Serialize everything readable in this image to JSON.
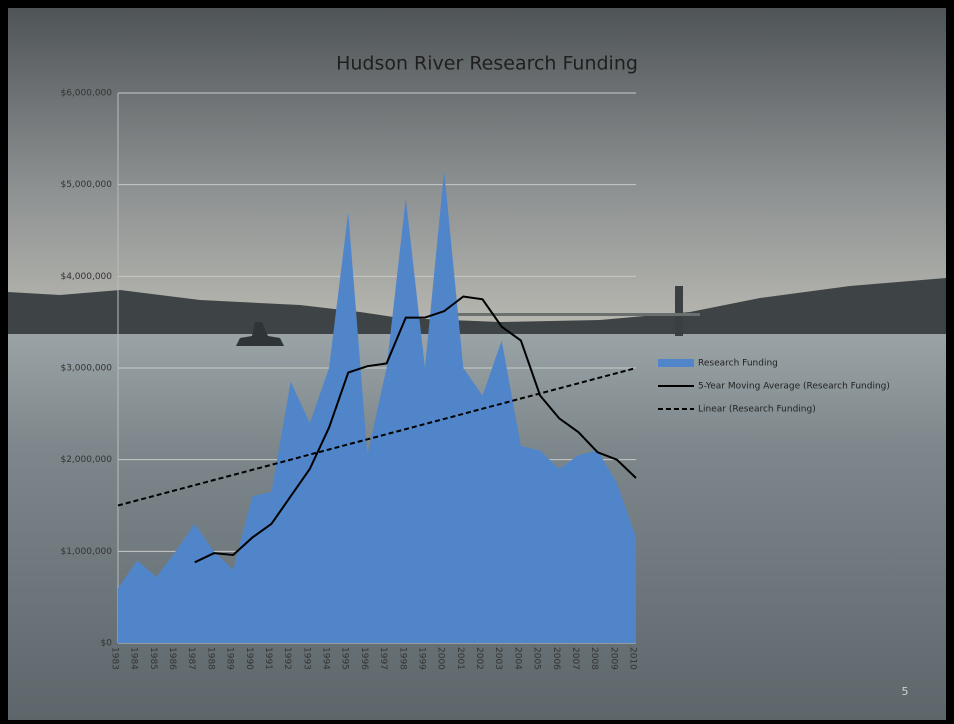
{
  "chart_data": {
    "type": "area",
    "title": "Hudson River Research Funding",
    "slide_number": "5",
    "categories": [
      "1983",
      "1984",
      "1985",
      "1986",
      "1987",
      "1988",
      "1989",
      "1990",
      "1991",
      "1992",
      "1993",
      "1994",
      "1995",
      "1996",
      "1997",
      "1998",
      "1999",
      "2000",
      "2001",
      "2002",
      "2003",
      "2004",
      "2005",
      "2006",
      "2007",
      "2008",
      "2009",
      "2010"
    ],
    "series": [
      {
        "name": "Research Funding",
        "color": "#5185c9",
        "style": "area",
        "values": [
          600000,
          900000,
          720000,
          1000000,
          1300000,
          1000000,
          800000,
          1600000,
          1650000,
          2850000,
          2400000,
          3000000,
          4700000,
          2050000,
          3000000,
          4850000,
          3000000,
          5150000,
          3000000,
          2700000,
          3300000,
          2150000,
          2100000,
          1900000,
          2050000,
          2100000,
          1750000,
          1150000
        ]
      },
      {
        "name": "5-Year Moving Average (Research Funding)",
        "color": "#000000",
        "style": "solid",
        "values": [
          null,
          null,
          null,
          null,
          880000,
          980000,
          960000,
          1150000,
          1300000,
          1600000,
          1900000,
          2350000,
          2950000,
          3020000,
          3050000,
          3550000,
          3550000,
          3620000,
          3780000,
          3750000,
          3450000,
          3300000,
          2700000,
          2450000,
          2300000,
          2080000,
          2000000,
          1800000
        ]
      },
      {
        "name": "Linear (Research Funding)",
        "color": "#000000",
        "style": "dashed",
        "values": [
          1500000,
          1556000,
          1611000,
          1667000,
          1722000,
          1778000,
          1833000,
          1889000,
          1944000,
          2000000,
          2056000,
          2111000,
          2167000,
          2222000,
          2278000,
          2333000,
          2389000,
          2444000,
          2500000,
          2556000,
          2611000,
          2667000,
          2722000,
          2778000,
          2833000,
          2889000,
          2944000,
          3000000
        ]
      }
    ],
    "ylim": [
      0,
      6000000
    ],
    "yticks": [
      {
        "value": 0,
        "label": "$0"
      },
      {
        "value": 1000000,
        "label": "$1,000,000"
      },
      {
        "value": 2000000,
        "label": "$2,000,000"
      },
      {
        "value": 3000000,
        "label": "$3,000,000"
      },
      {
        "value": 4000000,
        "label": "$4,000,000"
      },
      {
        "value": 5000000,
        "label": "$5,000,000"
      },
      {
        "value": 6000000,
        "label": "$6,000,000"
      }
    ],
    "grid": true,
    "legend": "right"
  }
}
